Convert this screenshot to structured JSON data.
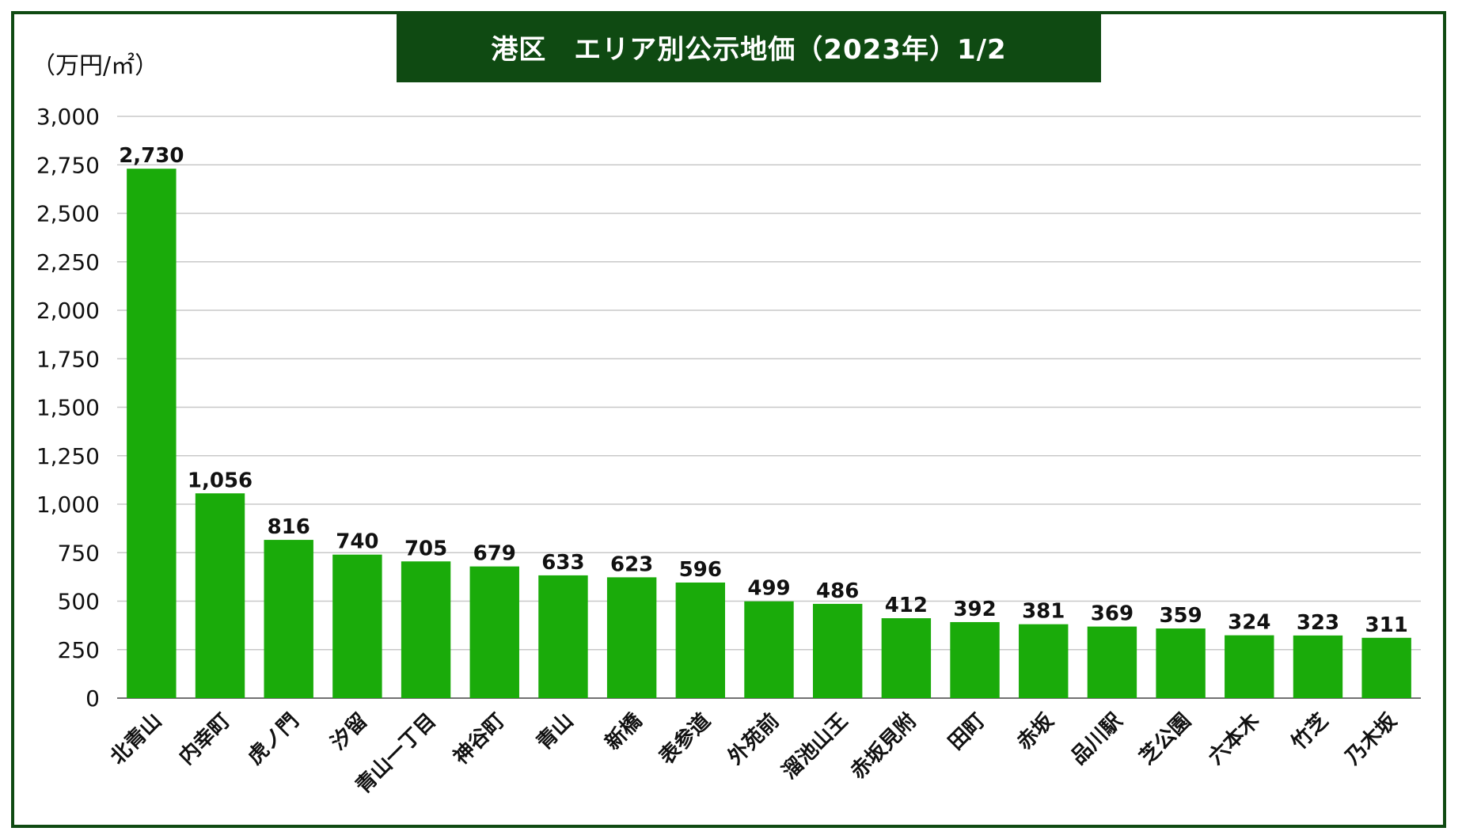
{
  "chart_data": {
    "type": "bar",
    "title": "港区　エリア別公示地価（2023年）1/2",
    "ylabel": "（万円/㎡）",
    "xlabel": "",
    "ylim": [
      0,
      3000
    ],
    "yticks": [
      0,
      250,
      500,
      750,
      1000,
      1250,
      1500,
      1750,
      2000,
      2250,
      2500,
      2750,
      3000
    ],
    "ytick_labels": [
      "0",
      "250",
      "500",
      "750",
      "1,000",
      "1,250",
      "1,500",
      "1,750",
      "2,000",
      "2,250",
      "2,500",
      "2,750",
      "3,000"
    ],
    "grid": true,
    "categories": [
      "北青山",
      "内幸町",
      "虎ノ門",
      "汐留",
      "青山一丁目",
      "神谷町",
      "青山",
      "新橋",
      "表参道",
      "外苑前",
      "溜池山王",
      "赤坂見附",
      "田町",
      "赤坂",
      "品川駅",
      "芝公園",
      "六本木",
      "竹芝",
      "乃木坂"
    ],
    "values": [
      2730,
      1056,
      816,
      740,
      705,
      679,
      633,
      623,
      596,
      499,
      486,
      412,
      392,
      381,
      369,
      359,
      324,
      323,
      311
    ],
    "value_labels": [
      "2,730",
      "1,056",
      "816",
      "740",
      "705",
      "679",
      "633",
      "623",
      "596",
      "499",
      "486",
      "412",
      "392",
      "381",
      "369",
      "359",
      "324",
      "323",
      "311"
    ],
    "colors": {
      "bar": "#1aab0a",
      "frame": "#0f4a12",
      "grid": "#c8c8c8",
      "axis": "#444444"
    }
  }
}
